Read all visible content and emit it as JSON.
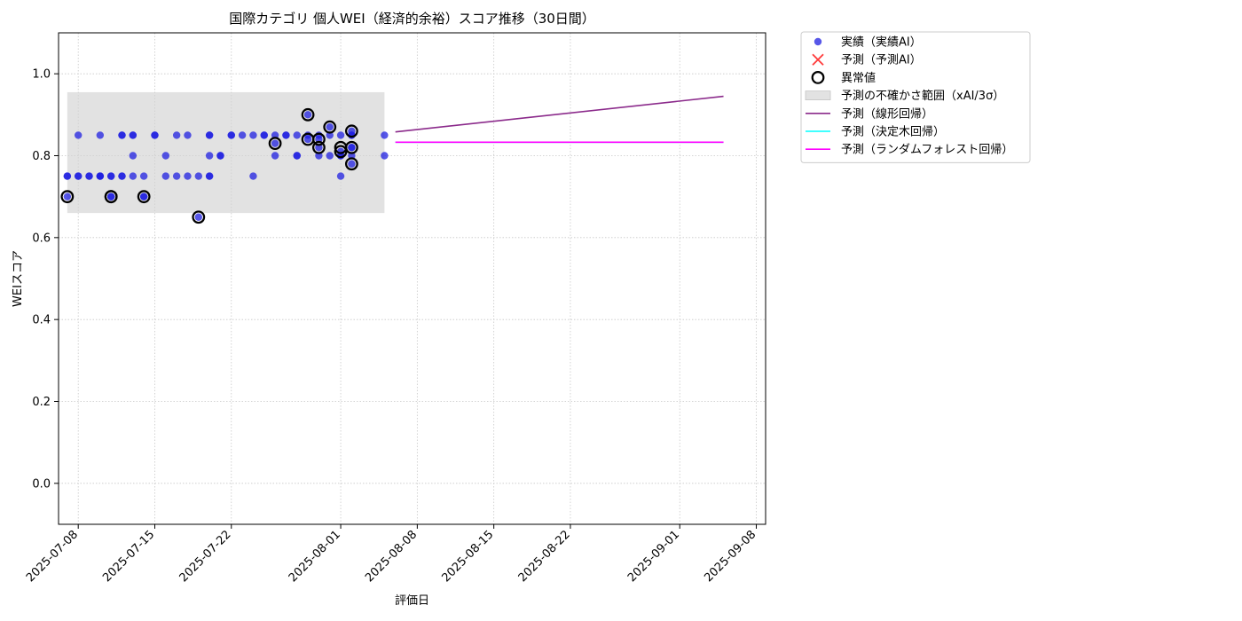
{
  "chart_data": {
    "type": "scatter",
    "title": "国際カテゴリ 個人WEI（経済的余裕）スコア推移（30日間）",
    "xlabel": "評価日",
    "ylabel": "WEIスコア",
    "xlim": [
      "2025-07-06",
      "2025-09-09"
    ],
    "ylim": [
      -0.1,
      1.1
    ],
    "x_ticks": [
      "2025-07-08",
      "2025-07-15",
      "2025-07-22",
      "2025-08-01",
      "2025-08-08",
      "2025-08-15",
      "2025-08-22",
      "2025-09-01",
      "2025-09-08"
    ],
    "y_ticks": [
      0.0,
      0.2,
      0.4,
      0.6,
      0.8,
      1.0
    ],
    "y_tick_labels": [
      "0.0",
      "0.2",
      "0.4",
      "0.6",
      "0.8",
      "1.0"
    ],
    "grid": true,
    "legend_position": "outside-right-top",
    "colors": {
      "actual": "#1f1fe0",
      "predicted_marker": "#ff3b3b",
      "anomaly": "#000000",
      "band": "#d3d3d3",
      "linear": "#8b2a8b",
      "tree": "#00ffff",
      "forest": "#ff00ff",
      "grid": "#c8c8c8"
    },
    "series": [
      {
        "name": "実績（実績AI）",
        "kind": "scatter",
        "points": [
          [
            "2025-07-07",
            0.75
          ],
          [
            "2025-07-07",
            0.7
          ],
          [
            "2025-07-07",
            0.75
          ],
          [
            "2025-07-08",
            0.75
          ],
          [
            "2025-07-08",
            0.75
          ],
          [
            "2025-07-08",
            0.85
          ],
          [
            "2025-07-09",
            0.75
          ],
          [
            "2025-07-09",
            0.75
          ],
          [
            "2025-07-10",
            0.75
          ],
          [
            "2025-07-10",
            0.75
          ],
          [
            "2025-07-10",
            0.85
          ],
          [
            "2025-07-10",
            0.75
          ],
          [
            "2025-07-11",
            0.7
          ],
          [
            "2025-07-11",
            0.75
          ],
          [
            "2025-07-11",
            0.75
          ],
          [
            "2025-07-11",
            0.7
          ],
          [
            "2025-07-12",
            0.85
          ],
          [
            "2025-07-12",
            0.85
          ],
          [
            "2025-07-12",
            0.75
          ],
          [
            "2025-07-12",
            0.75
          ],
          [
            "2025-07-13",
            0.85
          ],
          [
            "2025-07-13",
            0.8
          ],
          [
            "2025-07-13",
            0.85
          ],
          [
            "2025-07-13",
            0.75
          ],
          [
            "2025-07-14",
            0.75
          ],
          [
            "2025-07-14",
            0.7
          ],
          [
            "2025-07-14",
            0.7
          ],
          [
            "2025-07-15",
            0.85
          ],
          [
            "2025-07-15",
            0.85
          ],
          [
            "2025-07-16",
            0.8
          ],
          [
            "2025-07-16",
            0.75
          ],
          [
            "2025-07-17",
            0.75
          ],
          [
            "2025-07-17",
            0.85
          ],
          [
            "2025-07-18",
            0.75
          ],
          [
            "2025-07-18",
            0.85
          ],
          [
            "2025-07-19",
            0.75
          ],
          [
            "2025-07-19",
            0.65
          ],
          [
            "2025-07-20",
            0.85
          ],
          [
            "2025-07-20",
            0.75
          ],
          [
            "2025-07-20",
            0.8
          ],
          [
            "2025-07-20",
            0.85
          ],
          [
            "2025-07-20",
            0.75
          ],
          [
            "2025-07-21",
            0.8
          ],
          [
            "2025-07-21",
            0.8
          ],
          [
            "2025-07-22",
            0.85
          ],
          [
            "2025-07-22",
            0.85
          ],
          [
            "2025-07-23",
            0.85
          ],
          [
            "2025-07-24",
            0.85
          ],
          [
            "2025-07-24",
            0.75
          ],
          [
            "2025-07-25",
            0.85
          ],
          [
            "2025-07-25",
            0.85
          ],
          [
            "2025-07-26",
            0.85
          ],
          [
            "2025-07-26",
            0.8
          ],
          [
            "2025-07-26",
            0.83
          ],
          [
            "2025-07-27",
            0.85
          ],
          [
            "2025-07-27",
            0.85
          ],
          [
            "2025-07-28",
            0.85
          ],
          [
            "2025-07-28",
            0.8
          ],
          [
            "2025-07-28",
            0.8
          ],
          [
            "2025-07-29",
            0.85
          ],
          [
            "2025-07-29",
            0.9
          ],
          [
            "2025-07-29",
            0.84
          ],
          [
            "2025-07-30",
            0.84
          ],
          [
            "2025-07-30",
            0.85
          ],
          [
            "2025-07-30",
            0.8
          ],
          [
            "2025-07-30",
            0.82
          ],
          [
            "2025-07-31",
            0.8
          ],
          [
            "2025-07-31",
            0.87
          ],
          [
            "2025-07-31",
            0.85
          ],
          [
            "2025-08-01",
            0.8
          ],
          [
            "2025-08-01",
            0.8
          ],
          [
            "2025-08-01",
            0.81
          ],
          [
            "2025-08-01",
            0.75
          ],
          [
            "2025-08-01",
            0.85
          ],
          [
            "2025-08-02",
            0.85
          ],
          [
            "2025-08-02",
            0.82
          ],
          [
            "2025-08-02",
            0.8
          ],
          [
            "2025-08-02",
            0.78
          ],
          [
            "2025-08-02",
            0.86
          ],
          [
            "2025-08-02",
            0.85
          ],
          [
            "2025-08-02",
            0.82
          ],
          [
            "2025-08-05",
            0.85
          ],
          [
            "2025-08-05",
            0.8
          ]
        ]
      },
      {
        "name": "予測（予測AI）",
        "kind": "scatter",
        "points": []
      },
      {
        "name": "異常値",
        "kind": "scatter",
        "points": [
          [
            "2025-07-07",
            0.7
          ],
          [
            "2025-07-11",
            0.7
          ],
          [
            "2025-07-11",
            0.7
          ],
          [
            "2025-07-14",
            0.7
          ],
          [
            "2025-07-19",
            0.65
          ],
          [
            "2025-07-26",
            0.83
          ],
          [
            "2025-07-29",
            0.9
          ],
          [
            "2025-07-29",
            0.84
          ],
          [
            "2025-07-30",
            0.84
          ],
          [
            "2025-07-30",
            0.82
          ],
          [
            "2025-07-31",
            0.87
          ],
          [
            "2025-08-01",
            0.81
          ],
          [
            "2025-08-01",
            0.82
          ],
          [
            "2025-08-02",
            0.78
          ],
          [
            "2025-08-02",
            0.82
          ],
          [
            "2025-08-02",
            0.86
          ]
        ]
      },
      {
        "name": "予測の不確かさ範囲（xAI/3σ）",
        "kind": "band",
        "x": [
          "2025-07-07",
          "2025-08-05"
        ],
        "y_low": 0.66,
        "y_high": 0.955
      },
      {
        "name": "予測（線形回帰）",
        "kind": "line",
        "x": [
          "2025-08-06",
          "2025-09-05"
        ],
        "y": [
          0.858,
          0.945
        ]
      },
      {
        "name": "予測（決定木回帰）",
        "kind": "line",
        "x": [
          "2025-08-06",
          "2025-09-05"
        ],
        "y": [
          0.833,
          0.833
        ]
      },
      {
        "name": "予測（ランダムフォレスト回帰）",
        "kind": "line",
        "x": [
          "2025-08-06",
          "2025-09-05"
        ],
        "y": [
          0.833,
          0.833
        ]
      }
    ],
    "legend": [
      {
        "label": "実績（実績AI）",
        "marker": "dot"
      },
      {
        "label": "予測（予測AI）",
        "marker": "cross"
      },
      {
        "label": "異常値",
        "marker": "ring"
      },
      {
        "label": "予測の不確かさ範囲（xAI/3σ）",
        "marker": "band"
      },
      {
        "label": "予測（線形回帰）",
        "marker": "line-linear"
      },
      {
        "label": "予測（決定木回帰）",
        "marker": "line-tree"
      },
      {
        "label": "予測（ランダムフォレスト回帰）",
        "marker": "line-forest"
      }
    ]
  }
}
